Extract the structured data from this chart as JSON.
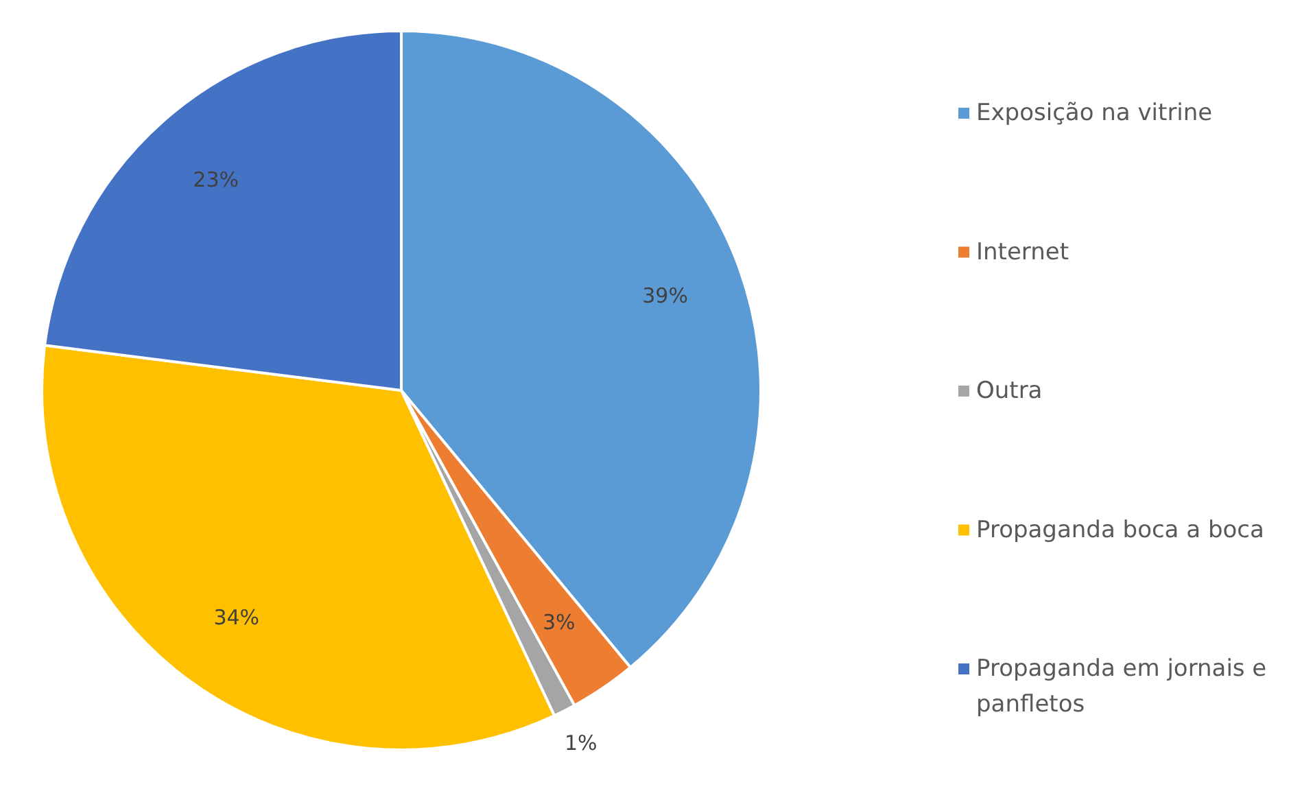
{
  "chart_data": {
    "type": "pie",
    "categories": [
      "Exposição na vitrine",
      "Internet",
      "Outra",
      "Propaganda boca a boca",
      "Propaganda em jornais e panfletos"
    ],
    "values": [
      39,
      3,
      1,
      34,
      23
    ],
    "colors": [
      "#5b9bd5",
      "#ed7d31",
      "#a5a5a5",
      "#ffc000",
      "#4472c4"
    ],
    "value_labels": [
      "39%",
      "3%",
      "1%",
      "34%",
      "23%"
    ],
    "legend": "right"
  }
}
